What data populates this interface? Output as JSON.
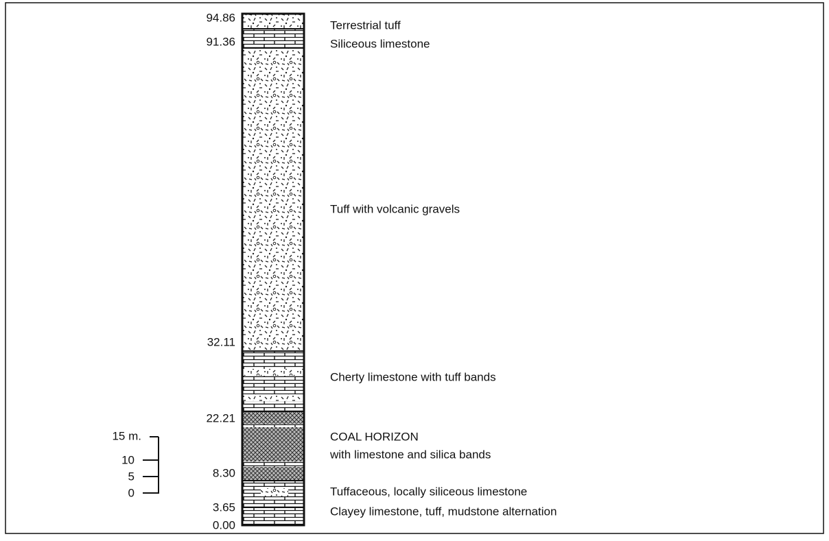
{
  "depths": [
    "94.86",
    "91.36",
    "32.11",
    "22.21",
    "8.30",
    "3.65",
    "0.00"
  ],
  "units": [
    {
      "label": "Terrestrial tuff"
    },
    {
      "label": "Siliceous limestone"
    },
    {
      "label": "Tuff with volcanic gravels"
    },
    {
      "label": "Cherty limestone with tuff bands"
    },
    {
      "label": "COAL HORIZON"
    },
    {
      "label": "with limestone and silica bands"
    },
    {
      "label": "Tuffaceous, locally siliceous limestone"
    },
    {
      "label": "Clayey limestone, tuff, mudstone alternation"
    }
  ],
  "scale": {
    "labels": [
      "15 m.",
      "10",
      "5",
      "0"
    ]
  }
}
